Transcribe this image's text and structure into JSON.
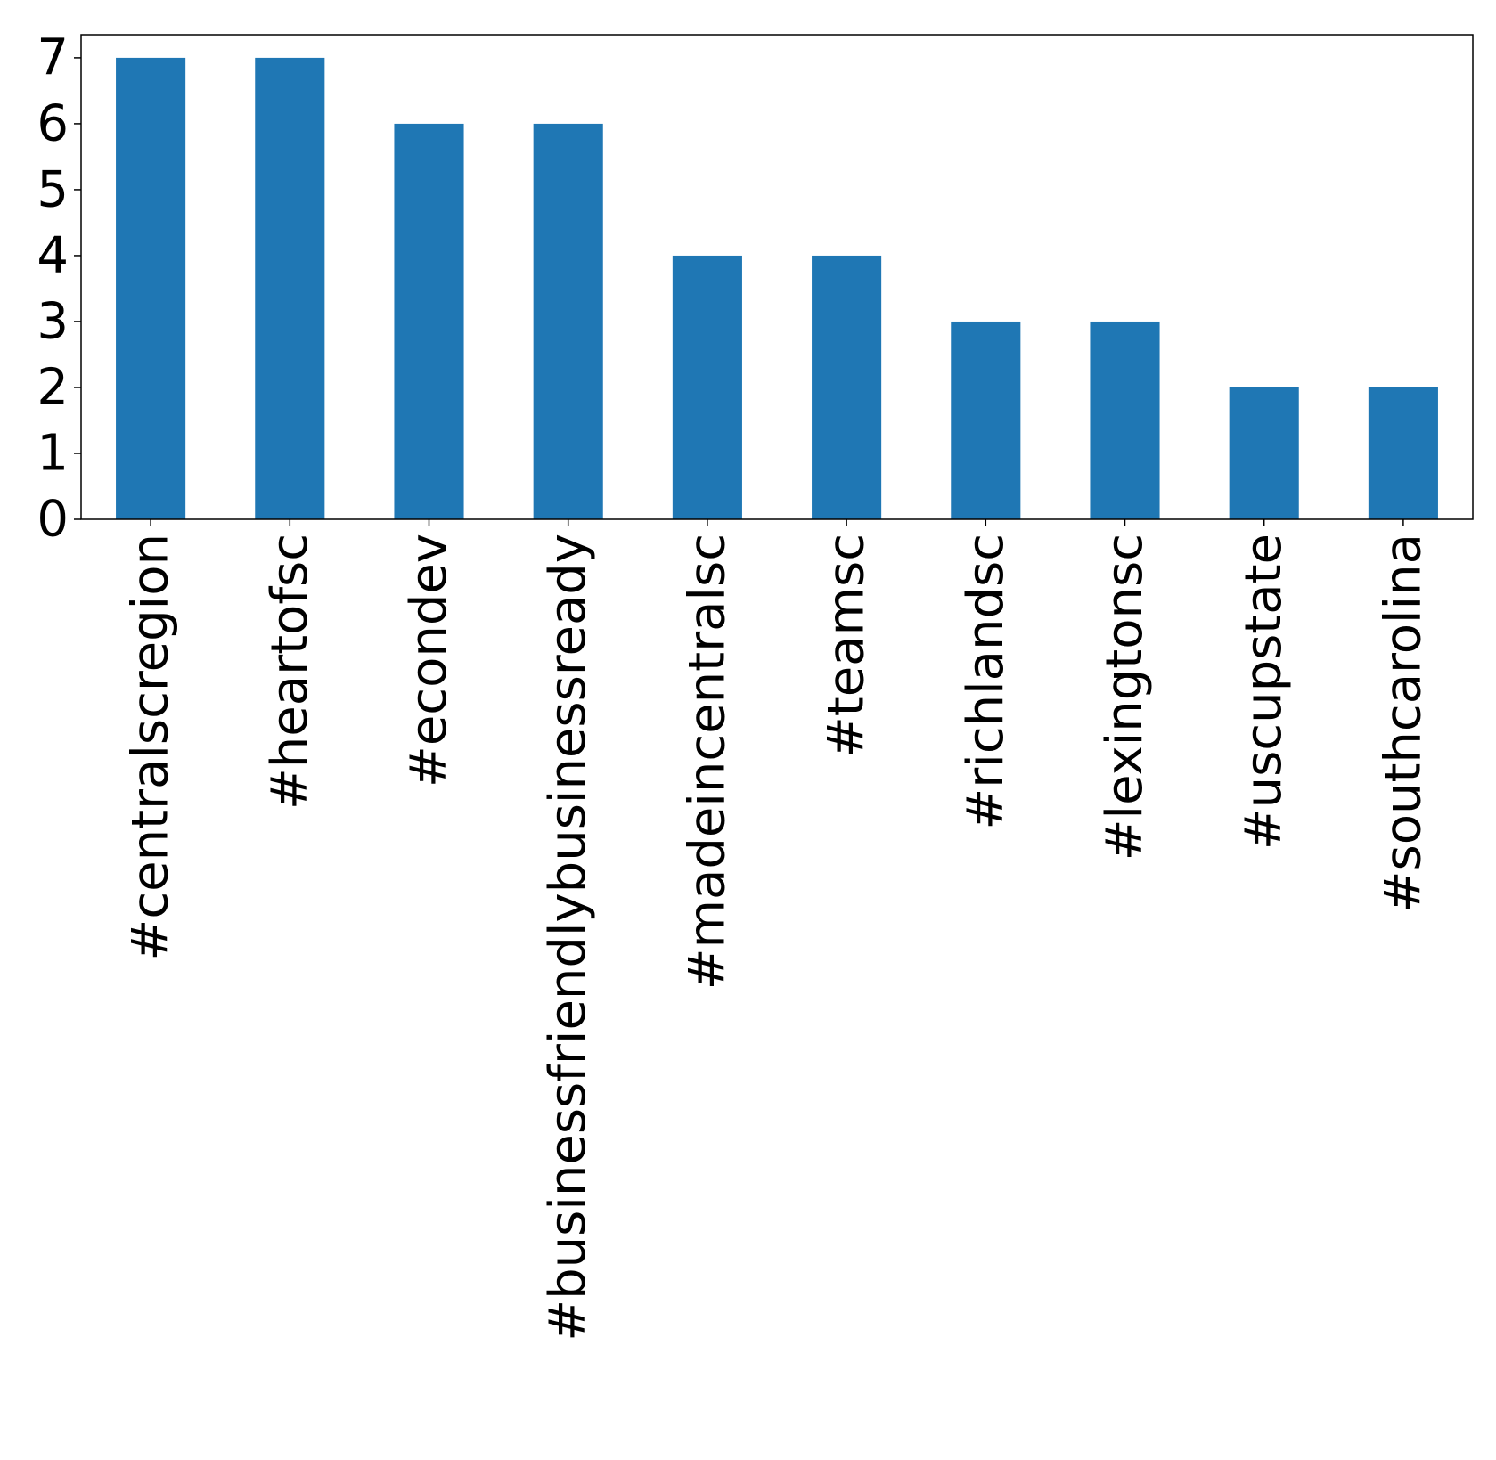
{
  "chart_data": {
    "type": "bar",
    "title": "",
    "xlabel": "",
    "ylabel": "",
    "categories": [
      "#centralscregion",
      "#heartofsc",
      "#econdev",
      "#businessfriendlybusinessready",
      "#madeincentralsc",
      "#teamsc",
      "#richlandsc",
      "#lexingtonsc",
      "#uscupstate",
      "#southcarolina"
    ],
    "values": [
      7,
      7,
      6,
      6,
      4,
      4,
      3,
      3,
      2,
      2
    ],
    "ylim": [
      0,
      7.35
    ],
    "yticks": [
      "0",
      "1",
      "2",
      "3",
      "4",
      "5",
      "6",
      "7"
    ],
    "bar_color": "#1f77b4",
    "grid": false,
    "legend": "none"
  }
}
